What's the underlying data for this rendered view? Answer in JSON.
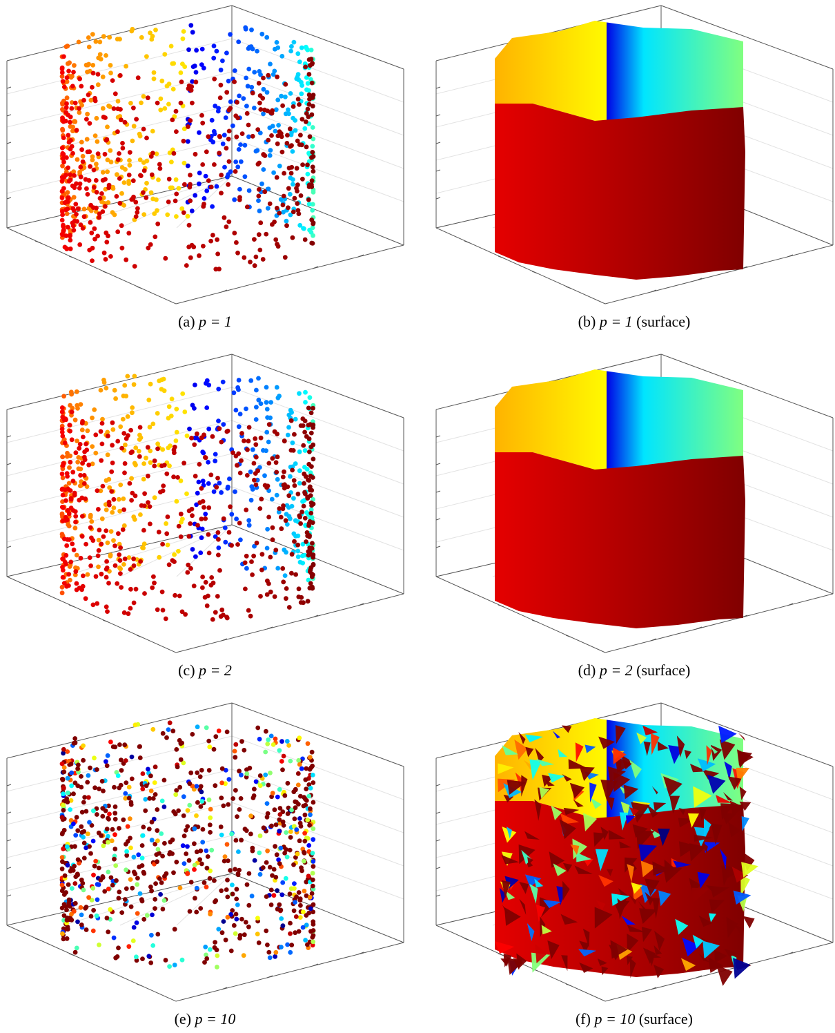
{
  "panels": [
    {
      "kind": "scatter",
      "label": "(a)",
      "math": "p = 1"
    },
    {
      "kind": "surface",
      "label": "(b)",
      "math": "p = 1",
      "note": "(surface)"
    },
    {
      "kind": "scatter",
      "label": "(c)",
      "math": "p = 2"
    },
    {
      "kind": "surface",
      "label": "(d)",
      "math": "p = 2",
      "note": "(surface)"
    },
    {
      "kind": "scatter",
      "label": "(e)",
      "math": "p = 10"
    },
    {
      "kind": "surface",
      "label": "(f)",
      "math": "p = 10",
      "note": "(surface)"
    }
  ]
}
